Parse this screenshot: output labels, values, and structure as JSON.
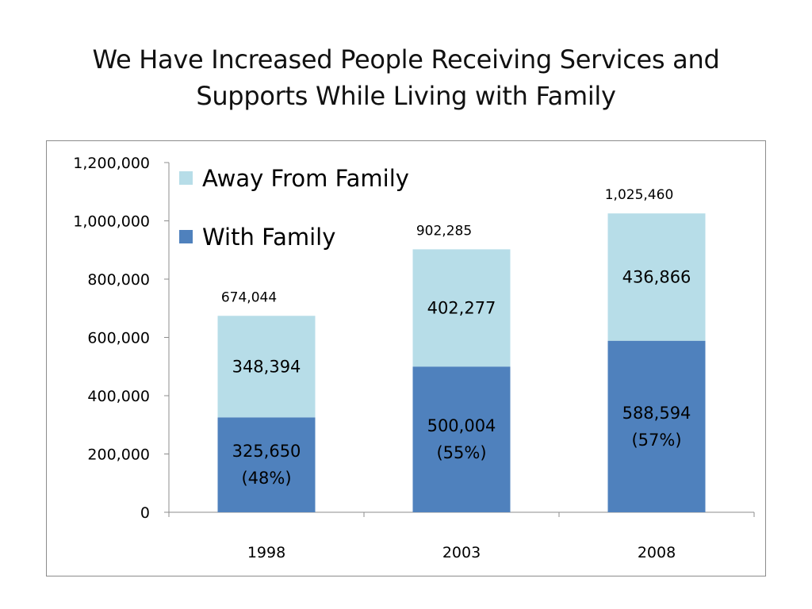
{
  "slide": {
    "title_line1": "We Have Increased People Receiving Services and",
    "title_line2": "Supports While Living with Family"
  },
  "chart_data": {
    "type": "bar",
    "stacked": true,
    "title": "",
    "xlabel": "",
    "ylabel": "",
    "categories": [
      "1998",
      "2003",
      "2008"
    ],
    "series": [
      {
        "name": "With Family",
        "color": "#4f81bd",
        "values": [
          325650,
          500004,
          588594
        ],
        "labels": [
          [
            "325,650",
            "(48%)"
          ],
          [
            "500,004",
            "(55%)"
          ],
          [
            "588,594",
            "(57%)"
          ]
        ]
      },
      {
        "name": "Away From Family",
        "color": "#b7dde8",
        "values": [
          348394,
          402277,
          436866
        ],
        "labels": [
          [
            "348,394"
          ],
          [
            "402,277"
          ],
          [
            "436,866"
          ]
        ]
      }
    ],
    "totals": [
      "674,044",
      "902,285",
      "1,025,460"
    ],
    "ylim": [
      0,
      1200000
    ],
    "yticks": [
      0,
      200000,
      400000,
      600000,
      800000,
      1000000,
      1200000
    ],
    "ytick_labels": [
      "0",
      "200,000",
      "400,000",
      "600,000",
      "800,000",
      "1,000,000",
      "1,200,000"
    ],
    "grid": false,
    "legend_position": "top-left",
    "legend_order": [
      "Away From Family",
      "With Family"
    ]
  }
}
